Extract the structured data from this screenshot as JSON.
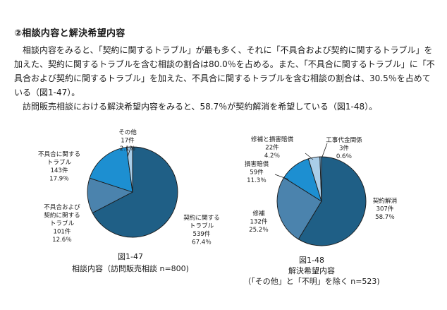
{
  "section_heading": "②相談内容と解決希望内容",
  "paragraphs": [
    "相談内容をみると、「契約に関するトラブル」が最も多く、それに「不具合および契約に関するトラブル」を加えた、契約に関するトラブルを含む相談の割合は80.0％を占める。また、「不具合に関するトラブル」に「不具合および契約に関するトラブル」を加えた、不具合に関するトラブルを含む相談の割合は、30.5％を占めている（図1-47）。",
    "訪問販売相談における解決希望内容をみると、58.7％が契約解消を希望している（図1-48）。"
  ],
  "colors": {
    "dark_blue": "#1f5f86",
    "steel_blue": "#4b83ad",
    "bright_blue": "#1d8fd1",
    "light_blue": "#a9cde8",
    "stroke": "#1a1a1a"
  },
  "chart_data": [
    {
      "type": "pie",
      "caption_number": "図1-47",
      "caption_title": "相談内容（訪問販売相談 n=800)",
      "slices": [
        {
          "lines": [
            "契約に関する",
            "トラブル",
            "539件",
            "67.4％"
          ],
          "count": 539,
          "percent": 67.4,
          "color": "#1f5f86"
        },
        {
          "lines": [
            "不具合および",
            "契約に関する",
            "トラブル",
            "101件",
            "12.6％"
          ],
          "count": 101,
          "percent": 12.6,
          "color": "#4b83ad"
        },
        {
          "lines": [
            "不具合に関する",
            "トラブル",
            "143件",
            "17.9％"
          ],
          "count": 143,
          "percent": 17.9,
          "color": "#1d8fd1"
        },
        {
          "lines": [
            "その他",
            "17件",
            "2.1％"
          ],
          "count": 17,
          "percent": 2.1,
          "color": "#a9cde8"
        }
      ]
    },
    {
      "type": "pie",
      "caption_number": "図1-48",
      "caption_title": "解決希望内容",
      "caption_subtitle": "（「その他」と「不明」を除く n=523)",
      "slices": [
        {
          "lines": [
            "契約解消",
            "307件",
            "58.7％"
          ],
          "count": 307,
          "percent": 58.7,
          "color": "#1f5f86"
        },
        {
          "lines": [
            "修補",
            "132件",
            "25.2％"
          ],
          "count": 132,
          "percent": 25.2,
          "color": "#4b83ad"
        },
        {
          "lines": [
            "損害賠償",
            "59件",
            "11.3％"
          ],
          "count": 59,
          "percent": 11.3,
          "color": "#1d8fd1"
        },
        {
          "lines": [
            "修補と損害賠償",
            "22件",
            "4.2％"
          ],
          "count": 22,
          "percent": 4.2,
          "color": "#a9cde8"
        },
        {
          "lines": [
            "工事代金関係",
            "3件",
            "0.6％"
          ],
          "count": 3,
          "percent": 0.6,
          "color": "#6fa9d3"
        }
      ]
    }
  ]
}
